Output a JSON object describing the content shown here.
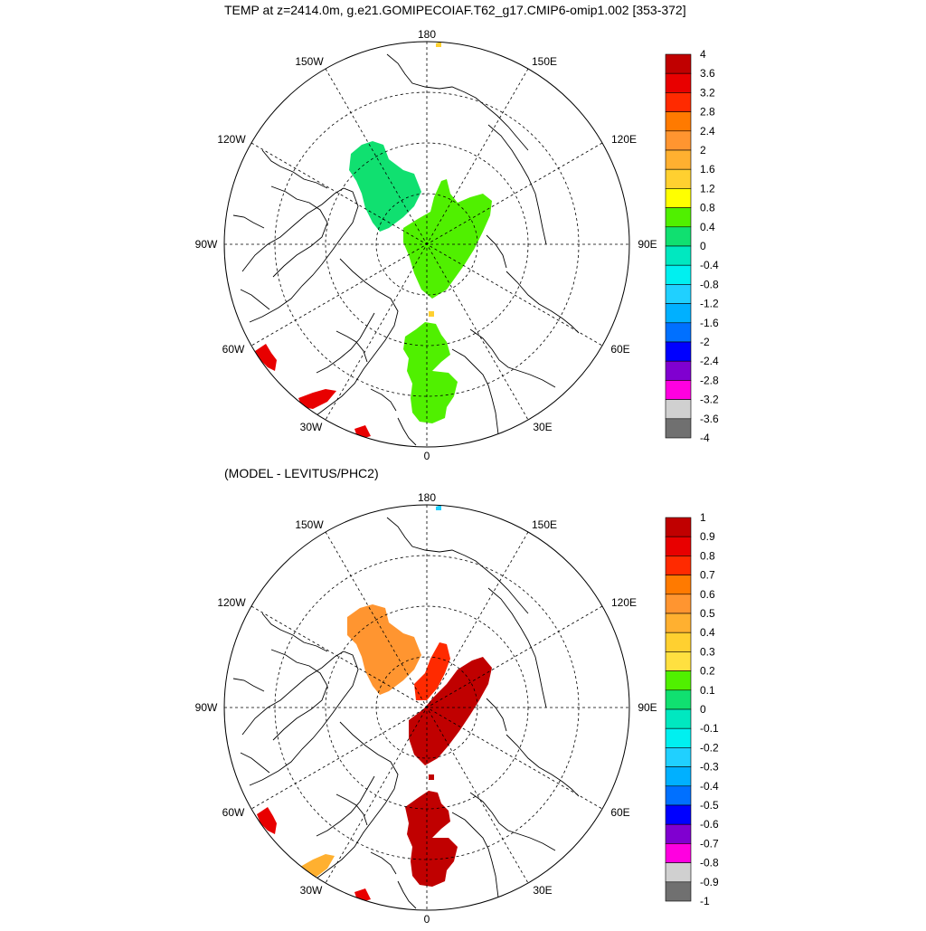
{
  "title": "TEMP at z=2414.0m, g.e21.GOMIPECOIAF.T62_g17.CMIP6-omip1.002 [353-372]",
  "subtitle": "(MODEL - LEVITUS/PHC2)",
  "longitude_labels": [
    "180",
    "150E",
    "120E",
    "90E",
    "60E",
    "30E",
    "0",
    "30W",
    "60W",
    "90W",
    "120W",
    "150W"
  ],
  "colorbar_top": {
    "labels": [
      "4",
      "3.6",
      "3.2",
      "2.8",
      "2.4",
      "2",
      "1.6",
      "1.2",
      "0.8",
      "0.4",
      "0",
      "-0.4",
      "-0.8",
      "-1.2",
      "-1.6",
      "-2",
      "-2.4",
      "-2.8",
      "-3.2",
      "-3.6",
      "-4"
    ],
    "colors": [
      "#c00000",
      "#e80000",
      "#ff2a00",
      "#ff7a00",
      "#ff9530",
      "#ffb030",
      "#ffd030",
      "#ffff00",
      "#50f000",
      "#10e070",
      "#00e8c0",
      "#00f0f0",
      "#20d0ff",
      "#00b0ff",
      "#0070ff",
      "#0000ff",
      "#8000d0",
      "#ff00e0",
      "#d0d0d0",
      "#707070"
    ]
  },
  "colorbar_bottom": {
    "labels": [
      "1",
      "0.9",
      "0.8",
      "0.7",
      "0.6",
      "0.5",
      "0.4",
      "0.3",
      "0.2",
      "0.1",
      "0",
      "-0.1",
      "-0.2",
      "-0.3",
      "-0.4",
      "-0.5",
      "-0.6",
      "-0.7",
      "-0.8",
      "-0.9",
      "-1"
    ],
    "colors": [
      "#c00000",
      "#e80000",
      "#ff2a00",
      "#ff7a00",
      "#ff9530",
      "#ffb030",
      "#ffd030",
      "#ffe040",
      "#50f000",
      "#10e070",
      "#00e8c0",
      "#00f0f0",
      "#20d0ff",
      "#00b0ff",
      "#0070ff",
      "#0000ff",
      "#8000d0",
      "#ff00e0",
      "#d0d0d0",
      "#707070"
    ]
  },
  "fields_top": {
    "eurasian_basin": "#50f000",
    "canada_basin": "#10e070",
    "greenland_sea": "#50f000",
    "baffin_patch": "#e80000",
    "labrador_patch": "#e80000"
  },
  "fields_bottom": {
    "eurasian_basin": "#c00000",
    "canada_basin": "#ff9530",
    "lomonosov_ridge": "#ff2a00",
    "greenland_sea": "#c00000",
    "baffin_patch": "#e80000",
    "labrador_patch": "#ffb030"
  }
}
